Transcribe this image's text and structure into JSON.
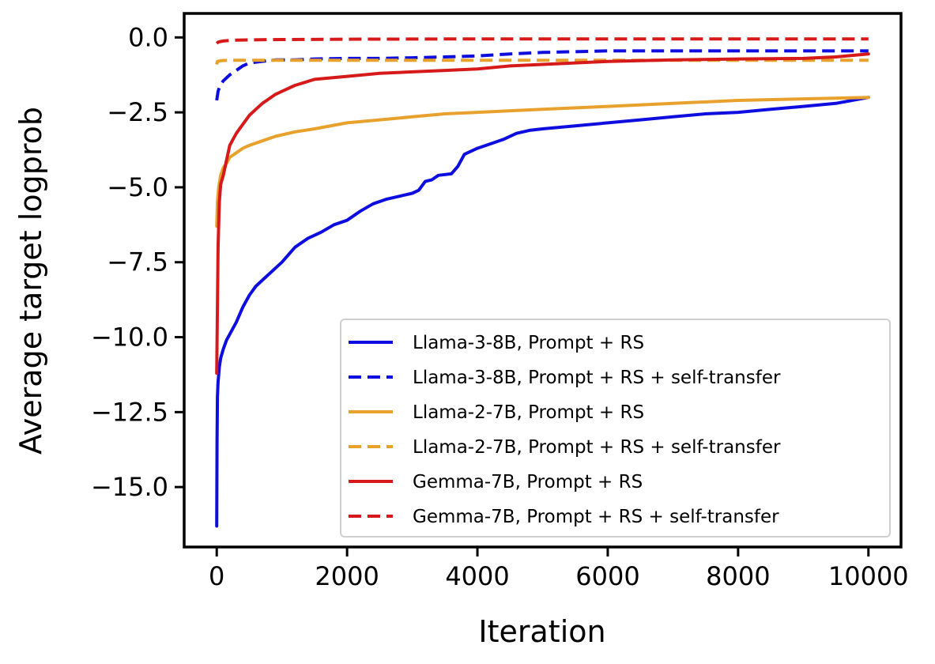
{
  "chart_data": {
    "type": "line",
    "title": "",
    "xlabel": "Iteration",
    "ylabel": "Average target logprob",
    "xlim": [
      -500,
      10500
    ],
    "ylim": [
      -17.0,
      0.8
    ],
    "xticks": [
      0,
      2000,
      4000,
      6000,
      8000,
      10000
    ],
    "xtick_labels": [
      "0",
      "2000",
      "4000",
      "6000",
      "8000",
      "10000"
    ],
    "yticks": [
      0.0,
      -2.5,
      -5.0,
      -7.5,
      -10.0,
      -12.5,
      -15.0
    ],
    "ytick_labels": [
      "0.0",
      "−2.5",
      "−5.0",
      "−7.5",
      "−10.0",
      "−12.5",
      "−15.0"
    ],
    "grid": false,
    "legend_position": "lower-right",
    "series": [
      {
        "name": "Llama-3-8B, Prompt + RS",
        "color": "#0d0de0",
        "dash": "solid",
        "x": [
          0,
          5,
          10,
          20,
          40,
          60,
          100,
          150,
          200,
          300,
          400,
          500,
          600,
          700,
          800,
          900,
          1000,
          1200,
          1400,
          1600,
          1800,
          2000,
          2200,
          2400,
          2600,
          2800,
          3000,
          3100,
          3200,
          3300,
          3400,
          3600,
          3700,
          3800,
          4000,
          4200,
          4400,
          4600,
          4800,
          5000,
          5500,
          6000,
          6500,
          7000,
          7500,
          8000,
          8500,
          9000,
          9500,
          10000
        ],
        "y": [
          -16.3,
          -13.5,
          -12.0,
          -11.5,
          -11.0,
          -10.7,
          -10.4,
          -10.1,
          -9.9,
          -9.5,
          -9.0,
          -8.6,
          -8.3,
          -8.1,
          -7.9,
          -7.7,
          -7.5,
          -7.0,
          -6.7,
          -6.5,
          -6.25,
          -6.1,
          -5.8,
          -5.55,
          -5.4,
          -5.3,
          -5.2,
          -5.1,
          -4.8,
          -4.75,
          -4.6,
          -4.55,
          -4.3,
          -3.9,
          -3.7,
          -3.55,
          -3.4,
          -3.2,
          -3.1,
          -3.05,
          -2.95,
          -2.85,
          -2.75,
          -2.65,
          -2.55,
          -2.5,
          -2.4,
          -2.3,
          -2.2,
          -2.0
        ]
      },
      {
        "name": "Llama-3-8B, Prompt + RS + self-transfer",
        "color": "#0d0de0",
        "dash": "dashed",
        "x": [
          0,
          20,
          50,
          100,
          150,
          200,
          300,
          400,
          500,
          700,
          900,
          1200,
          1500,
          2000,
          2500,
          3000,
          3500,
          4000,
          4500,
          5000,
          6000,
          7000,
          8000,
          9000,
          10000
        ],
        "y": [
          -2.1,
          -1.8,
          -1.6,
          -1.45,
          -1.35,
          -1.25,
          -1.1,
          -0.95,
          -0.85,
          -0.8,
          -0.75,
          -0.75,
          -0.72,
          -0.7,
          -0.7,
          -0.68,
          -0.65,
          -0.62,
          -0.55,
          -0.5,
          -0.45,
          -0.45,
          -0.45,
          -0.45,
          -0.45
        ]
      },
      {
        "name": "Llama-2-7B, Prompt + RS",
        "color": "#e8a12c",
        "dash": "solid",
        "x": [
          0,
          10,
          30,
          60,
          100,
          150,
          200,
          300,
          400,
          500,
          700,
          900,
          1200,
          1500,
          2000,
          2500,
          3000,
          3500,
          4000,
          5000,
          6000,
          7000,
          8000,
          9000,
          10000
        ],
        "y": [
          -6.3,
          -5.5,
          -5.0,
          -4.6,
          -4.35,
          -4.2,
          -4.0,
          -3.85,
          -3.7,
          -3.6,
          -3.45,
          -3.3,
          -3.15,
          -3.05,
          -2.85,
          -2.75,
          -2.65,
          -2.55,
          -2.5,
          -2.4,
          -2.3,
          -2.2,
          -2.1,
          -2.05,
          -2.0
        ]
      },
      {
        "name": "Llama-2-7B, Prompt + RS + self-transfer",
        "color": "#e8a12c",
        "dash": "dashed",
        "x": [
          0,
          10,
          50,
          100,
          200,
          400,
          1000,
          2000,
          4000,
          6000,
          8000,
          10000
        ],
        "y": [
          -0.9,
          -0.8,
          -0.78,
          -0.77,
          -0.76,
          -0.76,
          -0.76,
          -0.76,
          -0.76,
          -0.76,
          -0.76,
          -0.76
        ]
      },
      {
        "name": "Gemma-7B, Prompt + RS",
        "color": "#d61a1a",
        "dash": "solid",
        "x": [
          0,
          10,
          20,
          40,
          60,
          100,
          150,
          200,
          250,
          300,
          400,
          500,
          600,
          700,
          800,
          900,
          1000,
          1200,
          1500,
          2000,
          2500,
          3000,
          3500,
          4000,
          4500,
          5000,
          6000,
          7000,
          8000,
          9000,
          9500,
          10000
        ],
        "y": [
          -11.2,
          -9.0,
          -7.0,
          -5.5,
          -4.9,
          -4.6,
          -4.1,
          -3.6,
          -3.4,
          -3.2,
          -2.9,
          -2.6,
          -2.4,
          -2.2,
          -2.05,
          -1.9,
          -1.8,
          -1.6,
          -1.4,
          -1.3,
          -1.2,
          -1.15,
          -1.1,
          -1.05,
          -0.95,
          -0.9,
          -0.8,
          -0.75,
          -0.72,
          -0.7,
          -0.65,
          -0.55
        ]
      },
      {
        "name": "Gemma-7B, Prompt + RS + self-transfer",
        "color": "#d61a1a",
        "dash": "dashed",
        "x": [
          0,
          20,
          50,
          100,
          200,
          300,
          500,
          1000,
          2000,
          4000,
          6000,
          8000,
          10000
        ],
        "y": [
          -0.2,
          -0.16,
          -0.14,
          -0.12,
          -0.1,
          -0.09,
          -0.08,
          -0.07,
          -0.06,
          -0.05,
          -0.05,
          -0.05,
          -0.05
        ]
      }
    ]
  }
}
